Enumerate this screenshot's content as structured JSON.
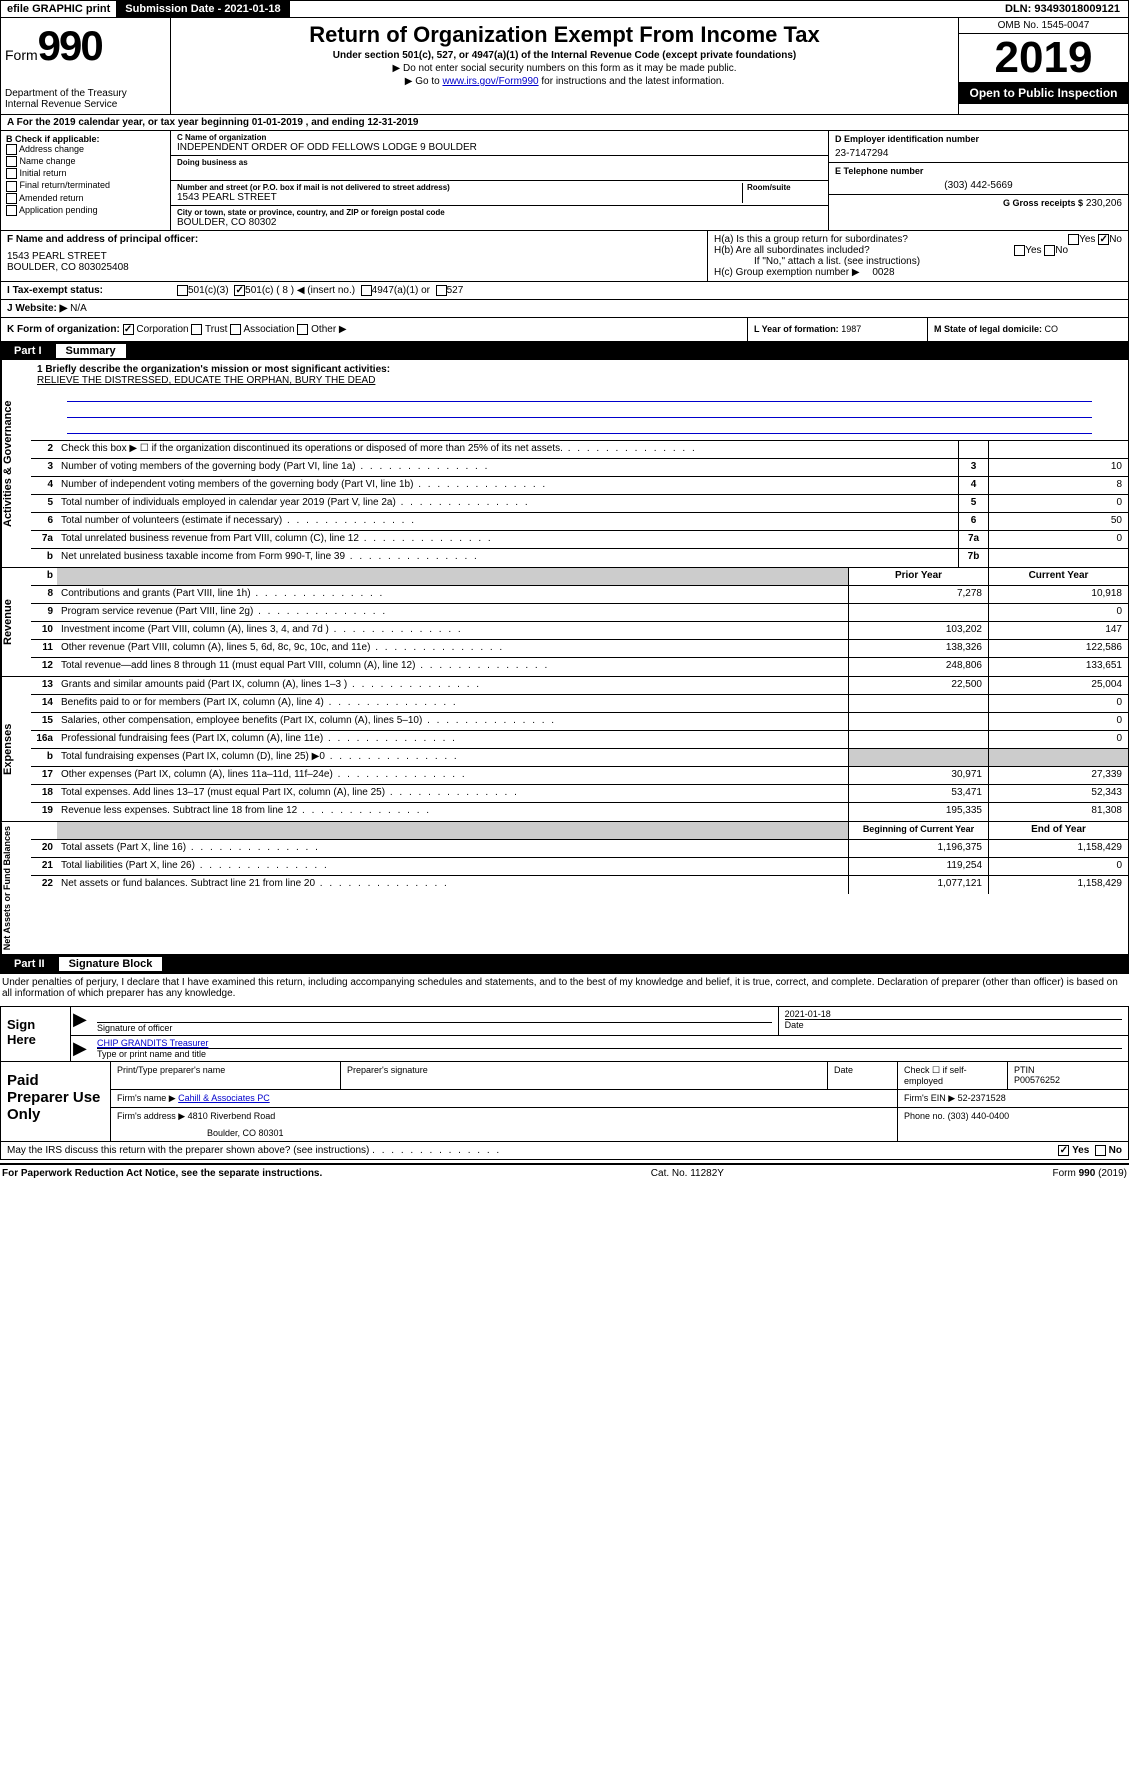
{
  "top": {
    "efile": "efile GRAPHIC print",
    "submission_label": "Submission Date - 2021-01-18",
    "dln": "DLN: 93493018009121"
  },
  "header": {
    "form_prefix": "Form",
    "form_number": "990",
    "title": "Return of Organization Exempt From Income Tax",
    "subtitle": "Under section 501(c), 527, or 4947(a)(1) of the Internal Revenue Code (except private foundations)",
    "note1": "▶ Do not enter social security numbers on this form as it may be made public.",
    "note2_pre": "▶ Go to ",
    "note2_link": "www.irs.gov/Form990",
    "note2_post": " for instructions and the latest information.",
    "dept": "Department of the Treasury\nInternal Revenue Service",
    "omb": "OMB No. 1545-0047",
    "year": "2019",
    "open": "Open to Public Inspection"
  },
  "period": "For the 2019 calendar year, or tax year beginning 01-01-2019    , and ending 12-31-2019",
  "B": {
    "label": "B Check if applicable:",
    "items": [
      "Address change",
      "Name change",
      "Initial return",
      "Final return/terminated",
      "Amended return",
      "Application pending"
    ]
  },
  "C": {
    "name_lbl": "C Name of organization",
    "name": "INDEPENDENT ORDER OF ODD FELLOWS LODGE 9 BOULDER",
    "dba_lbl": "Doing business as",
    "addr_lbl": "Number and street (or P.O. box if mail is not delivered to street address)",
    "room_lbl": "Room/suite",
    "addr": "1543 PEARL STREET",
    "city_lbl": "City or town, state or province, country, and ZIP or foreign postal code",
    "city": "BOULDER, CO  80302"
  },
  "D": {
    "lbl": "D Employer identification number",
    "val": "23-7147294"
  },
  "E": {
    "lbl": "E Telephone number",
    "val": "(303) 442-5669"
  },
  "G": {
    "lbl": "G Gross receipts $",
    "val": "230,206"
  },
  "F": {
    "lbl": "F  Name and address of principal officer:",
    "addr1": "1543 PEARL STREET",
    "addr2": "BOULDER, CO  803025408"
  },
  "H": {
    "a": "H(a)  Is this a group return for subordinates?",
    "a_yes": "Yes",
    "a_no": "No",
    "b": "H(b)  Are all subordinates included?",
    "b_yes": "Yes",
    "b_no": "No",
    "b_note": "If \"No,\" attach a list. (see instructions)",
    "c": "H(c)  Group exemption number ▶",
    "c_val": "0028"
  },
  "I": {
    "lbl": "Tax-exempt status:",
    "opts": [
      "501(c)(3)",
      "501(c) ( 8 ) ◀ (insert no.)",
      "4947(a)(1) or",
      "527"
    ]
  },
  "J": {
    "lbl": "J   Website: ▶",
    "val": "N/A"
  },
  "K": {
    "lbl": "K Form of organization:",
    "opts": [
      "Corporation",
      "Trust",
      "Association",
      "Other ▶"
    ]
  },
  "L": {
    "lbl": "L Year of formation:",
    "val": "1987"
  },
  "M": {
    "lbl": "M State of legal domicile:",
    "val": "CO"
  },
  "part1": {
    "num": "Part I",
    "title": "Summary"
  },
  "mission": {
    "q": "1  Briefly describe the organization's mission or most significant activities:",
    "text": "RELIEVE THE DISTRESSED, EDUCATE THE ORPHAN, BURY THE DEAD"
  },
  "lines_gov": [
    {
      "n": "2",
      "d": "Check this box ▶ ☐  if the organization discontinued its operations or disposed of more than 25% of its net assets.",
      "k": "",
      "v": ""
    },
    {
      "n": "3",
      "d": "Number of voting members of the governing body (Part VI, line 1a)",
      "k": "3",
      "v": "10"
    },
    {
      "n": "4",
      "d": "Number of independent voting members of the governing body (Part VI, line 1b)",
      "k": "4",
      "v": "8"
    },
    {
      "n": "5",
      "d": "Total number of individuals employed in calendar year 2019 (Part V, line 2a)",
      "k": "5",
      "v": "0"
    },
    {
      "n": "6",
      "d": "Total number of volunteers (estimate if necessary)",
      "k": "6",
      "v": "50"
    },
    {
      "n": "7a",
      "d": "Total unrelated business revenue from Part VIII, column (C), line 12",
      "k": "7a",
      "v": "0"
    },
    {
      "n": "b",
      "d": "Net unrelated business taxable income from Form 990-T, line 39",
      "k": "7b",
      "v": ""
    }
  ],
  "col_headers": {
    "prior": "Prior Year",
    "current": "Current Year"
  },
  "lines_rev": [
    {
      "n": "8",
      "d": "Contributions and grants (Part VIII, line 1h)",
      "p": "7,278",
      "c": "10,918"
    },
    {
      "n": "9",
      "d": "Program service revenue (Part VIII, line 2g)",
      "p": "",
      "c": "0"
    },
    {
      "n": "10",
      "d": "Investment income (Part VIII, column (A), lines 3, 4, and 7d )",
      "p": "103,202",
      "c": "147"
    },
    {
      "n": "11",
      "d": "Other revenue (Part VIII, column (A), lines 5, 6d, 8c, 9c, 10c, and 11e)",
      "p": "138,326",
      "c": "122,586"
    },
    {
      "n": "12",
      "d": "Total revenue—add lines 8 through 11 (must equal Part VIII, column (A), line 12)",
      "p": "248,806",
      "c": "133,651"
    }
  ],
  "lines_exp": [
    {
      "n": "13",
      "d": "Grants and similar amounts paid (Part IX, column (A), lines 1–3 )",
      "p": "22,500",
      "c": "25,004"
    },
    {
      "n": "14",
      "d": "Benefits paid to or for members (Part IX, column (A), line 4)",
      "p": "",
      "c": "0"
    },
    {
      "n": "15",
      "d": "Salaries, other compensation, employee benefits (Part IX, column (A), lines 5–10)",
      "p": "",
      "c": "0"
    },
    {
      "n": "16a",
      "d": "Professional fundraising fees (Part IX, column (A), line 11e)",
      "p": "",
      "c": "0"
    },
    {
      "n": "b",
      "d": "Total fundraising expenses (Part IX, column (D), line 25) ▶0",
      "p": "shade",
      "c": "shade"
    },
    {
      "n": "17",
      "d": "Other expenses (Part IX, column (A), lines 11a–11d, 11f–24e)",
      "p": "30,971",
      "c": "27,339"
    },
    {
      "n": "18",
      "d": "Total expenses. Add lines 13–17 (must equal Part IX, column (A), line 25)",
      "p": "53,471",
      "c": "52,343"
    },
    {
      "n": "19",
      "d": "Revenue less expenses. Subtract line 18 from line 12",
      "p": "195,335",
      "c": "81,308"
    }
  ],
  "col_headers2": {
    "prior": "Beginning of Current Year",
    "current": "End of Year"
  },
  "lines_net": [
    {
      "n": "20",
      "d": "Total assets (Part X, line 16)",
      "p": "1,196,375",
      "c": "1,158,429"
    },
    {
      "n": "21",
      "d": "Total liabilities (Part X, line 26)",
      "p": "119,254",
      "c": "0"
    },
    {
      "n": "22",
      "d": "Net assets or fund balances. Subtract line 21 from line 20",
      "p": "1,077,121",
      "c": "1,158,429"
    }
  ],
  "vtabs": {
    "gov": "Activities & Governance",
    "rev": "Revenue",
    "exp": "Expenses",
    "net": "Net Assets or Fund Balances"
  },
  "part2": {
    "num": "Part II",
    "title": "Signature Block"
  },
  "perjury": "Under penalties of perjury, I declare that I have examined this return, including accompanying schedules and statements, and to the best of my knowledge and belief, it is true, correct, and complete. Declaration of preparer (other than officer) is based on all information of which preparer has any knowledge.",
  "sign": {
    "here": "Sign Here",
    "sig_lbl": "Signature of officer",
    "date_lbl": "Date",
    "date": "2021-01-18",
    "name": "CHIP GRANDITS Treasurer",
    "name_lbl": "Type or print name and title"
  },
  "paid": {
    "title": "Paid Preparer Use Only",
    "h1": "Print/Type preparer's name",
    "h2": "Preparer's signature",
    "h3": "Date",
    "h4": "Check ☐ if self-employed",
    "h5": "PTIN",
    "ptin": "P00576252",
    "firm_lbl": "Firm's name    ▶",
    "firm": "Cahill & Associates PC",
    "ein_lbl": "Firm's EIN ▶",
    "ein": "52-2371528",
    "addr_lbl": "Firm's address ▶",
    "addr1": "4810 Riverbend Road",
    "addr2": "Boulder, CO  80301",
    "phone_lbl": "Phone no.",
    "phone": "(303) 440-0400"
  },
  "discuss": {
    "q": "May the IRS discuss this return with the preparer shown above? (see instructions)",
    "yes": "Yes",
    "no": "No"
  },
  "footer": {
    "l": "For Paperwork Reduction Act Notice, see the separate instructions.",
    "c": "Cat. No. 11282Y",
    "r": "Form 990 (2019)"
  }
}
